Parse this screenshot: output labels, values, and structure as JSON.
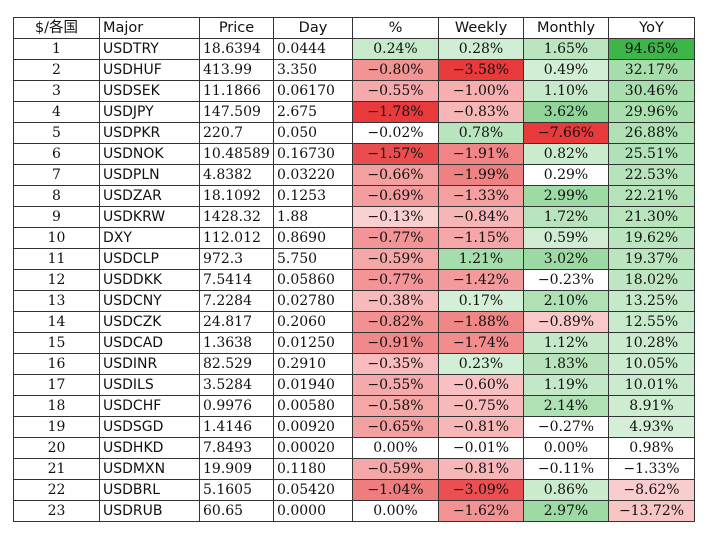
{
  "headers": [
    "$/各国",
    "Major",
    "Price",
    "Day",
    "%",
    "Weekly",
    "Monthly",
    "YoY"
  ],
  "rows": [
    [
      "1",
      "USDTRY",
      "18.6394",
      "0.0444",
      "0.24%",
      "0.28%",
      "1.65%",
      "94.65%"
    ],
    [
      "2",
      "USDHUF",
      "413.99",
      "3.350",
      "−0.80%",
      "−3.58%",
      "0.49%",
      "32.17%"
    ],
    [
      "3",
      "USDSEK",
      "11.1866",
      "0.06170",
      "−0.55%",
      "−1.00%",
      "1.10%",
      "30.46%"
    ],
    [
      "4",
      "USDJPY",
      "147.509",
      "2.675",
      "−1.78%",
      "−0.83%",
      "3.62%",
      "29.96%"
    ],
    [
      "5",
      "USDPKR",
      "220.7",
      "0.050",
      "−0.02%",
      "0.78%",
      "−7.66%",
      "26.88%"
    ],
    [
      "6",
      "USDNOK",
      "10.48589",
      "0.16730",
      "−1.57%",
      "−1.91%",
      "0.82%",
      "25.51%"
    ],
    [
      "7",
      "USDPLN",
      "4.8382",
      "0.03220",
      "−0.66%",
      "−1.99%",
      "0.29%",
      "22.53%"
    ],
    [
      "8",
      "USDZAR",
      "18.1092",
      "0.1253",
      "−0.69%",
      "−1.33%",
      "2.99%",
      "22.21%"
    ],
    [
      "9",
      "USDKRW",
      "1428.32",
      "1.88",
      "−0.13%",
      "−0.84%",
      "1.72%",
      "21.30%"
    ],
    [
      "10",
      "DXY",
      "112.012",
      "0.8690",
      "−0.77%",
      "−1.15%",
      "0.59%",
      "19.62%"
    ],
    [
      "11",
      "USDCLP",
      "972.3",
      "5.750",
      "−0.59%",
      "1.21%",
      "3.02%",
      "19.37%"
    ],
    [
      "12",
      "USDDKK",
      "7.5414",
      "0.05860",
      "−0.77%",
      "−1.42%",
      "−0.23%",
      "18.02%"
    ],
    [
      "13",
      "USDCNY",
      "7.2284",
      "0.02780",
      "−0.38%",
      "0.17%",
      "2.10%",
      "13.25%"
    ],
    [
      "14",
      "USDCZK",
      "24.817",
      "0.2060",
      "−0.82%",
      "−1.88%",
      "−0.89%",
      "12.55%"
    ],
    [
      "15",
      "USDCAD",
      "1.3638",
      "0.01250",
      "−0.91%",
      "−1.74%",
      "1.12%",
      "10.28%"
    ],
    [
      "16",
      "USDINR",
      "82.529",
      "0.2910",
      "−0.35%",
      "0.23%",
      "1.83%",
      "10.05%"
    ],
    [
      "17",
      "USDILS",
      "3.5284",
      "0.01940",
      "−0.55%",
      "−0.60%",
      "1.19%",
      "10.01%"
    ],
    [
      "18",
      "USDCHF",
      "0.9976",
      "0.00580",
      "−0.58%",
      "−0.75%",
      "2.14%",
      "8.91%"
    ],
    [
      "19",
      "USDSGD",
      "1.4146",
      "0.00920",
      "−0.65%",
      "−0.81%",
      "−0.27%",
      "4.93%"
    ],
    [
      "20",
      "USDHKD",
      "7.8493",
      "0.00020",
      "0.00%",
      "−0.01%",
      "0.00%",
      "0.98%"
    ],
    [
      "21",
      "USDMXN",
      "19.909",
      "0.1180",
      "−0.59%",
      "−0.81%",
      "−0.11%",
      "−1.33%"
    ],
    [
      "22",
      "USDBRL",
      "5.1605",
      "0.05420",
      "−1.04%",
      "−3.09%",
      "0.86%",
      "−8.62%"
    ],
    [
      "23",
      "USDRUB",
      "60.65",
      "0.0000",
      "0.00%",
      "−1.62%",
      "2.97%",
      "−13.72%"
    ]
  ],
  "colors": {
    "border": "#333333",
    "positive_full": "#3cb548",
    "negative_full": "#e8383a",
    "neutral": "#ffffff"
  },
  "scales": {
    "pct": 1.8,
    "weekly": 3.6,
    "monthly": 7.7,
    "yoy": 95
  }
}
